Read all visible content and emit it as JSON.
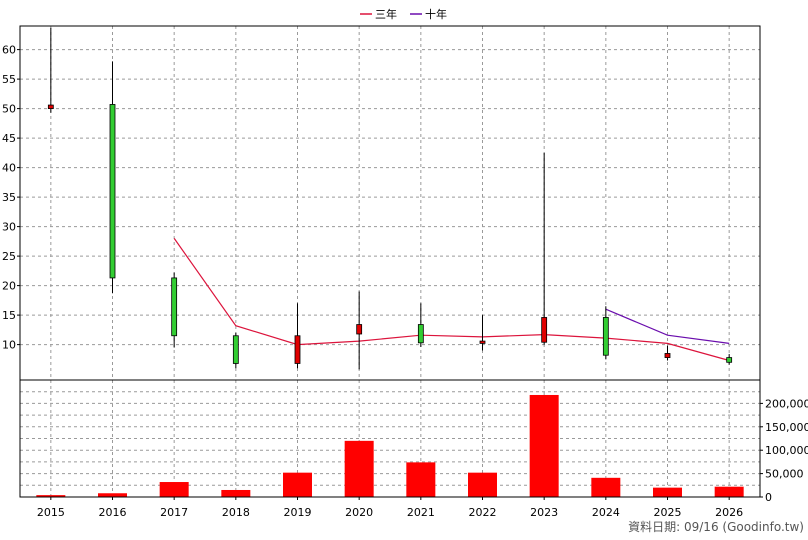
{
  "chart_data": [
    {
      "type": "candlestick",
      "x": [
        "2015",
        "2016",
        "2017",
        "2018",
        "2019",
        "2020",
        "2021",
        "2022",
        "2023",
        "2024",
        "2025",
        "2026"
      ],
      "ylim": [
        4,
        64
      ],
      "yticks": [
        10,
        15,
        20,
        25,
        30,
        35,
        40,
        45,
        50,
        55,
        60
      ],
      "grid": true,
      "legend_position": "top-center",
      "candles": [
        {
          "x": "2015",
          "open": 50.6,
          "close": 50.0,
          "high": 63.7,
          "low": 49.3
        },
        {
          "x": "2016",
          "open": 21.3,
          "close": 50.7,
          "high": 58.0,
          "low": 18.7
        },
        {
          "x": "2017",
          "open": 11.5,
          "close": 21.3,
          "high": 22.2,
          "low": 9.5
        },
        {
          "x": "2018",
          "open": 6.8,
          "close": 11.5,
          "high": 12.0,
          "low": 6.0
        },
        {
          "x": "2019",
          "open": 11.5,
          "close": 6.8,
          "high": 17.0,
          "low": 6.0
        },
        {
          "x": "2020",
          "open": 13.4,
          "close": 11.8,
          "high": 19.0,
          "low": 5.8
        },
        {
          "x": "2021",
          "open": 10.3,
          "close": 13.4,
          "high": 17.0,
          "low": 9.6
        },
        {
          "x": "2022",
          "open": 10.6,
          "close": 10.2,
          "high": 15.0,
          "low": 9.0
        },
        {
          "x": "2023",
          "open": 14.6,
          "close": 10.4,
          "high": 42.5,
          "low": 10.0
        },
        {
          "x": "2024",
          "open": 8.2,
          "close": 14.6,
          "high": 16.5,
          "low": 7.5
        },
        {
          "x": "2025",
          "open": 8.5,
          "close": 7.8,
          "high": 9.8,
          "low": 7.3
        },
        {
          "x": "2026",
          "open": 7.0,
          "close": 7.8,
          "high": 8.4,
          "low": 6.6
        }
      ],
      "series": [
        {
          "name": "三年",
          "color": "#dc143c",
          "points": [
            [
              "2017",
              28.0
            ],
            [
              "2018",
              13.2
            ],
            [
              "2019",
              10.0
            ],
            [
              "2020",
              10.6
            ],
            [
              "2021",
              11.6
            ],
            [
              "2022",
              11.3
            ],
            [
              "2023",
              11.7
            ],
            [
              "2024",
              11.1
            ],
            [
              "2025",
              10.2
            ],
            [
              "2026",
              7.3
            ]
          ]
        },
        {
          "name": "十年",
          "color": "#6a0dad",
          "points": [
            [
              "2024",
              16.0
            ],
            [
              "2025",
              11.6
            ],
            [
              "2026",
              10.2
            ]
          ]
        }
      ]
    },
    {
      "type": "bar",
      "x": [
        "2015",
        "2016",
        "2017",
        "2018",
        "2019",
        "2020",
        "2021",
        "2022",
        "2023",
        "2024",
        "2025",
        "2026"
      ],
      "values": [
        4000,
        8000,
        32000,
        15000,
        52000,
        120000,
        74000,
        52000,
        218000,
        41000,
        20000,
        22000
      ],
      "ylim": [
        0,
        250000
      ],
      "yticks": [
        0,
        50000,
        100000,
        150000,
        200000
      ],
      "ytick_labels": [
        "0",
        "50,000",
        "100,000",
        "150,000",
        "200,000"
      ],
      "color": "#ff0000",
      "grid": true
    }
  ],
  "legend": {
    "items": [
      "三年",
      "十年"
    ]
  },
  "source_label": "資料日期: 09/16  (Goodinfo.tw)"
}
